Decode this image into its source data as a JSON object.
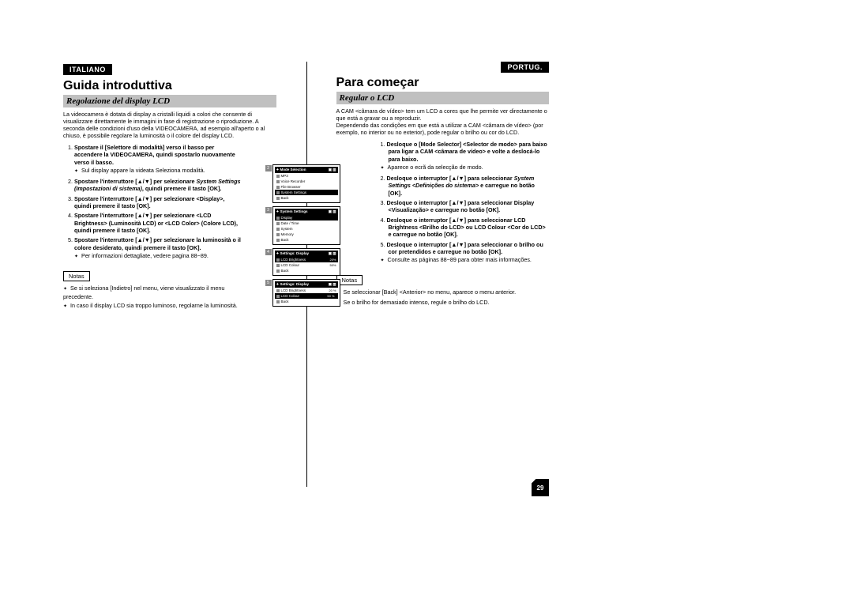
{
  "left": {
    "lang": "ITALIANO",
    "title": "Guida introduttiva",
    "subtitle": "Regolazione del display LCD",
    "intro": "La videocamera è dotata di display a cristalli liquidi a colori che consente di visualizzare direttamente le immagini in fase di registrazione o riproduzione. A seconda delle condizioni d'uso della VIDEOCAMERA, ad esempio all'aperto o al chiuso, è possibile regolare la luminosità o il colore del display LCD.",
    "steps": [
      {
        "b": "Spostare il [Selettore di modalità] verso il basso per accendere la VIDEOCAMERA, quindi spostarlo nuovamente verso il basso.",
        "sub": "Sul display appare la videata Seleziona modalità."
      },
      {
        "b": "Spostare l'interruttore [▲/▼] per selezionare ",
        "i": "System Settings (Impostazioni di sistema)",
        "b2": ", quindi premere il tasto [OK]."
      },
      {
        "b": "Spostare l'interruttore [▲/▼] per selezionare <Display>, quindi premere il tasto [OK]."
      },
      {
        "b": "Spostare l'interruttore [▲/▼] per selezionare <LCD Brightness> (Luminosità LCD) or <LCD Color> (Colore LCD), quindi premere il tasto [OK]."
      },
      {
        "b": "Spostare l'interruttore [▲/▼] per selezionare la luminosità o il colore desiderato, quindi premere il tasto [OK].",
        "sub": "Per informazioni dettagliate, vedere pagina 88~89."
      }
    ],
    "notesLabel": "Notas",
    "notes": [
      "Se si seleziona [Indietro] nel menu, viene visualizzato il menu precedente.",
      "In caso il display LCD sia troppo luminoso, regolarne la luminosità."
    ]
  },
  "right": {
    "lang": "PORTUG.",
    "title": "Para começar",
    "subtitle": "Regular o LCD",
    "intro": "A CAM <câmara de vídeo> tem um LCD a cores que lhe permite ver directamente o que está a gravar ou a reproduzir.\nDependendo das condições em que está a utilizar a CAM <câmara de vídeo> (por exemplo, no interior ou no exterior), pode regular o brilho ou cor do LCD.",
    "steps": [
      {
        "b": "Desloque o [Mode Selector] <Selector de modo> para baixo para ligar a CAM <câmara de vídeo> e volte a deslocá-lo para baixo.",
        "sub": "Aparece o ecrã da selecção de modo."
      },
      {
        "b": "Desloque o interruptor [▲/▼] para seleccionar ",
        "i": "System Settings <Definições do sistema>",
        "b2": " e carregue no botão [OK]."
      },
      {
        "b": "Desloque o interruptor [▲/▼] para seleccionar Display <Visualização> e carregue no botão [OK]."
      },
      {
        "b": "Desloque o interruptor [▲/▼] para seleccionar LCD Brightness <Brilho do LCD> ou LCD Colour <Cor do LCD> e carregue no botão [OK]."
      },
      {
        "b": "Desloque o interruptor [▲/▼] para seleccionar o brilho ou cor pretendidos e carregue no botão [OK].",
        "sub": "Consulte as páginas 88~89 para obter mais informações."
      }
    ],
    "notesLabel": "Notas",
    "notes": [
      "Se seleccionar [Back] <Anterior> no menu, aparece o menu anterior.",
      "Se o brilho for demasiado intenso, regule o brilho do LCD."
    ]
  },
  "page_number": "29",
  "screens": [
    {
      "num": "2",
      "title": "Mode Selection",
      "rows": [
        {
          "t": "MP3"
        },
        {
          "t": "Voice Recorder"
        },
        {
          "t": "File Browser"
        },
        {
          "t": "System Settings",
          "sel": true
        },
        {
          "t": "Back"
        }
      ]
    },
    {
      "num": "3",
      "title": "System Settings",
      "rows": [
        {
          "t": "Display",
          "sel": true
        },
        {
          "t": "Date / Time"
        },
        {
          "t": "System"
        },
        {
          "t": "Memory"
        },
        {
          "t": "Back"
        }
      ]
    },
    {
      "num": "4",
      "title": "Settings: Display",
      "rows": [
        {
          "t": "LCD Brightness",
          "v": "20%",
          "sel": true
        },
        {
          "t": "LCD Colour",
          "v": "50%"
        },
        {
          "t": "Back"
        }
      ]
    },
    {
      "num": "5",
      "title": "Settings: Display",
      "rows": [
        {
          "t": "LCD Brightness",
          "v": "20 %"
        },
        {
          "t": "LCD Colour",
          "v": "50 %",
          "sel": true,
          "vbox": true
        },
        {
          "t": "Back"
        }
      ]
    }
  ]
}
